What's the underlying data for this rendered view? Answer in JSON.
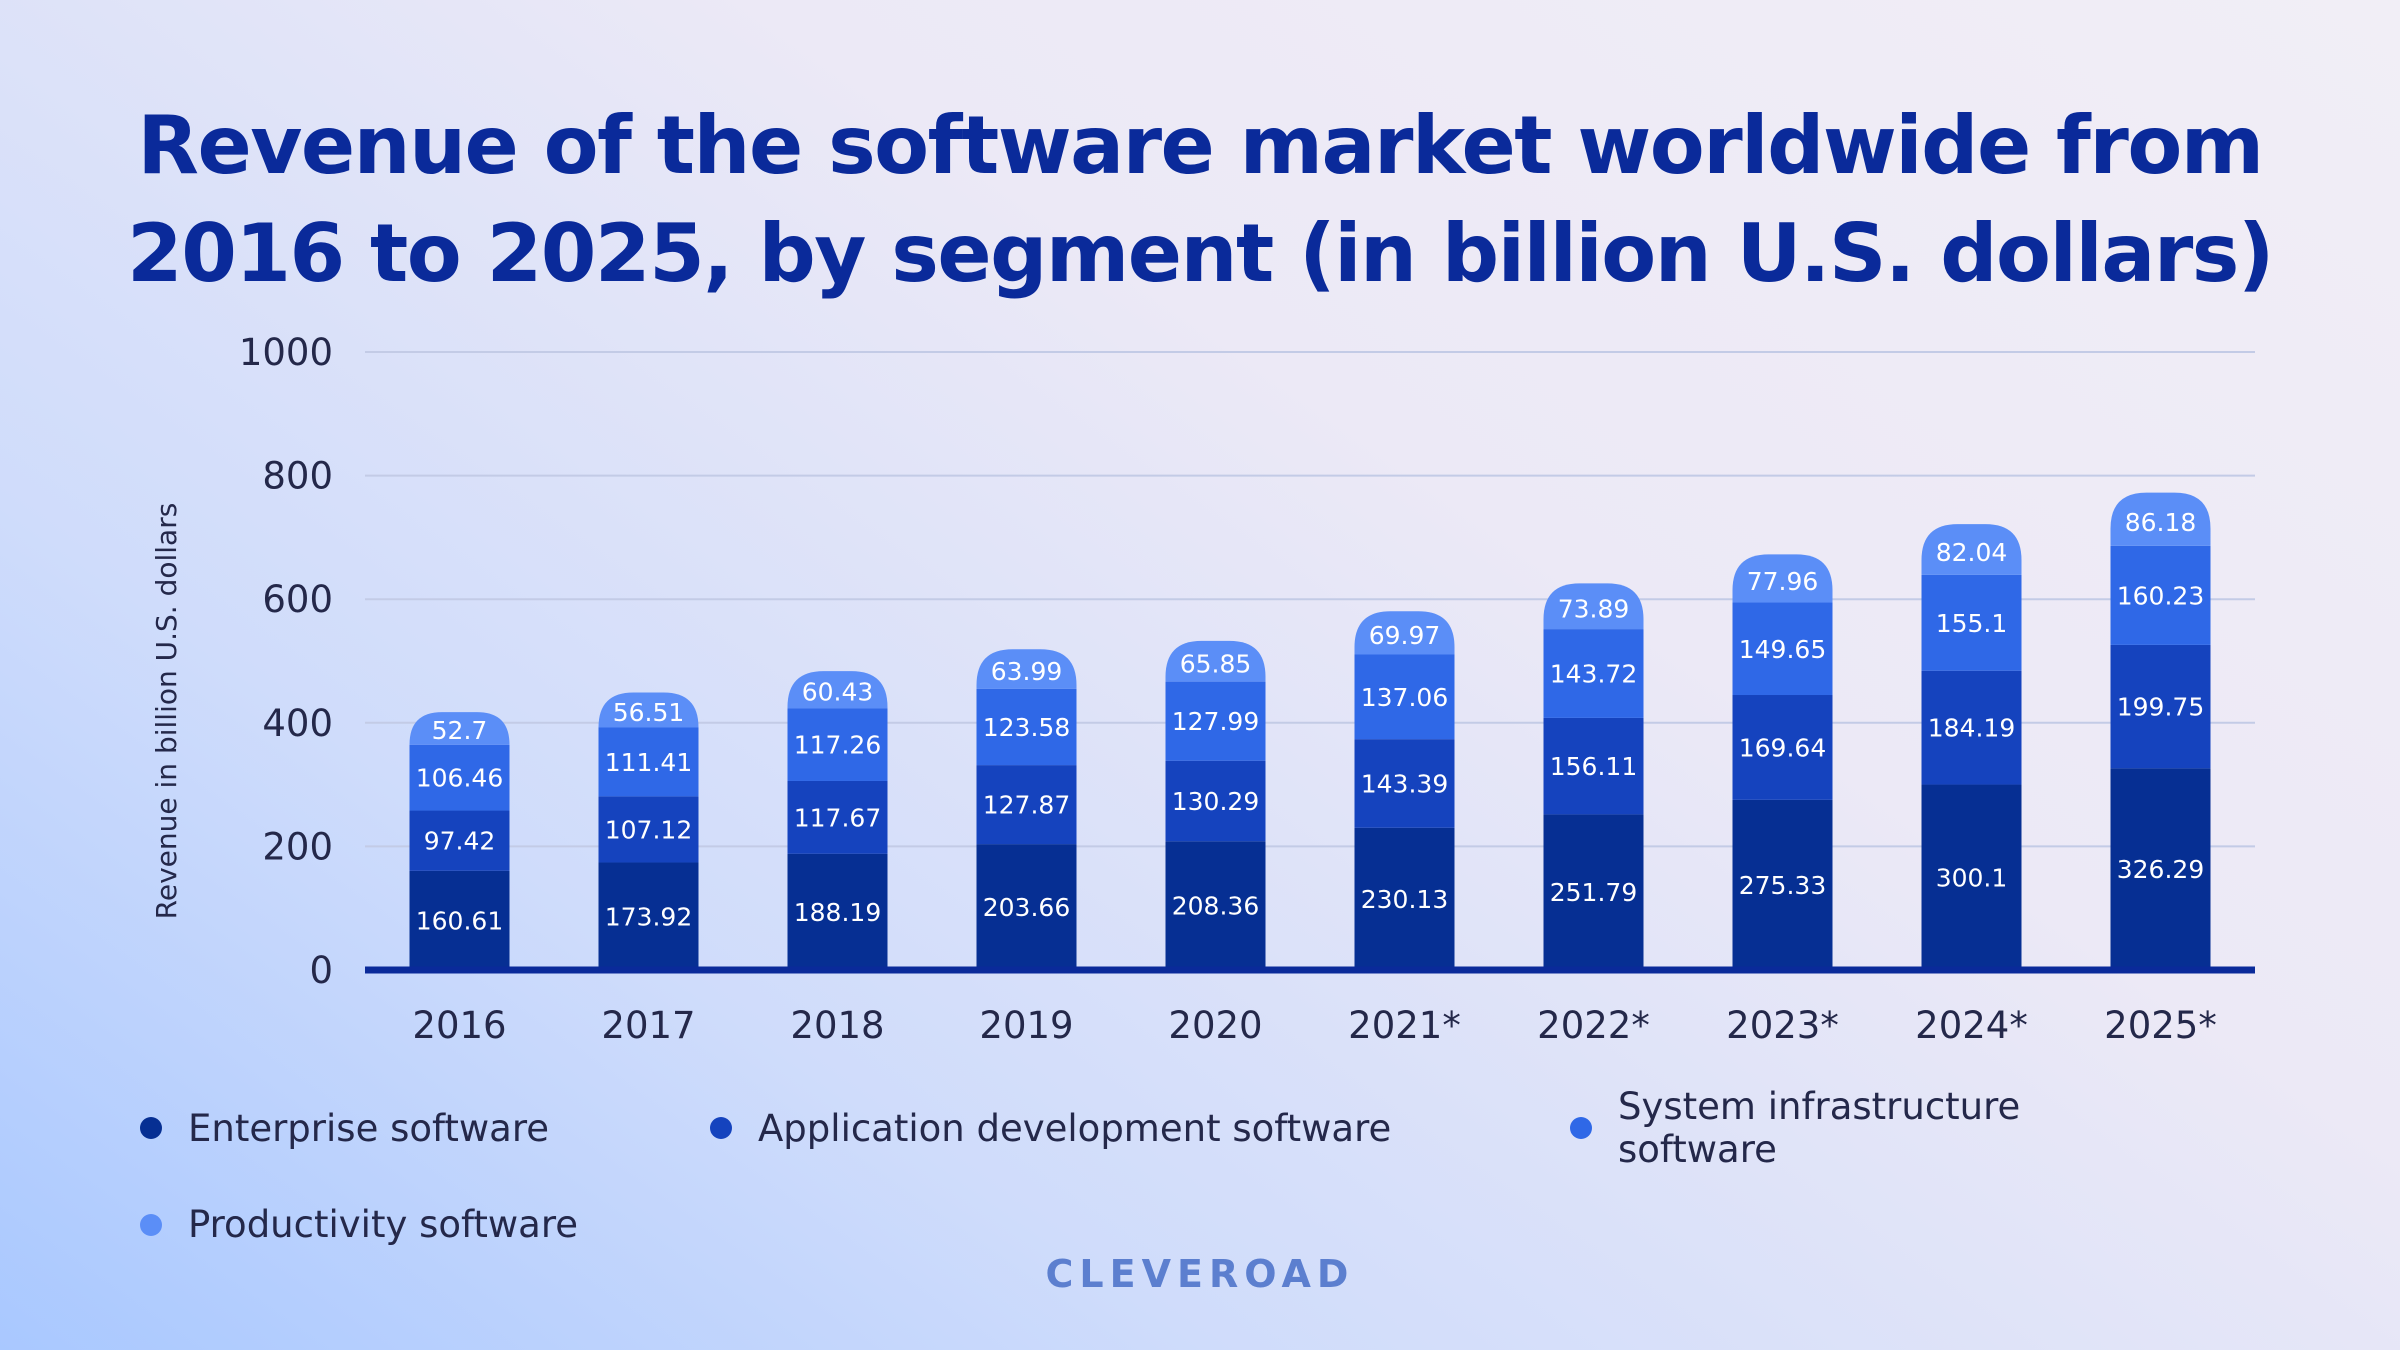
{
  "title": "Revenue of the software market worldwide from\n2016 to 2025, by segment (in billion U.S. dollars)",
  "brand": "CLEVEROAD",
  "colors": {
    "title": "#0a2a9a",
    "brand": "#5c7fcf",
    "axis": "#0a2a9a",
    "grid": "#c3cbe6"
  },
  "chart_data": {
    "type": "bar",
    "stacked": true,
    "categories": [
      "2016",
      "2017",
      "2018",
      "2019",
      "2020",
      "2021*",
      "2022*",
      "2023*",
      "2024*",
      "2025*"
    ],
    "ylabel": "Revenue in billion U.S. dollars",
    "xlabel": "",
    "ylim": [
      0,
      1000
    ],
    "yticks": [
      0,
      200,
      400,
      600,
      800,
      1000
    ],
    "grid": true,
    "legend_position": "bottom",
    "series": [
      {
        "name": "Enterprise software",
        "color": "#062f93",
        "values": [
          160.61,
          173.92,
          188.19,
          203.66,
          208.36,
          230.13,
          251.79,
          275.33,
          300.1,
          326.29
        ]
      },
      {
        "name": "Application development software",
        "color": "#1543be",
        "values": [
          97.42,
          107.12,
          117.67,
          127.87,
          130.29,
          143.39,
          156.11,
          169.64,
          184.19,
          199.75
        ]
      },
      {
        "name": "System infrastructure software",
        "color": "#2f68e7",
        "values": [
          106.46,
          111.41,
          117.26,
          123.58,
          127.99,
          137.06,
          143.72,
          149.65,
          155.1,
          160.23
        ]
      },
      {
        "name": "Productivity software",
        "color": "#5b8ef7",
        "values": [
          52.7,
          56.51,
          60.43,
          63.99,
          65.85,
          69.97,
          73.89,
          77.96,
          82.04,
          86.18
        ]
      }
    ]
  }
}
